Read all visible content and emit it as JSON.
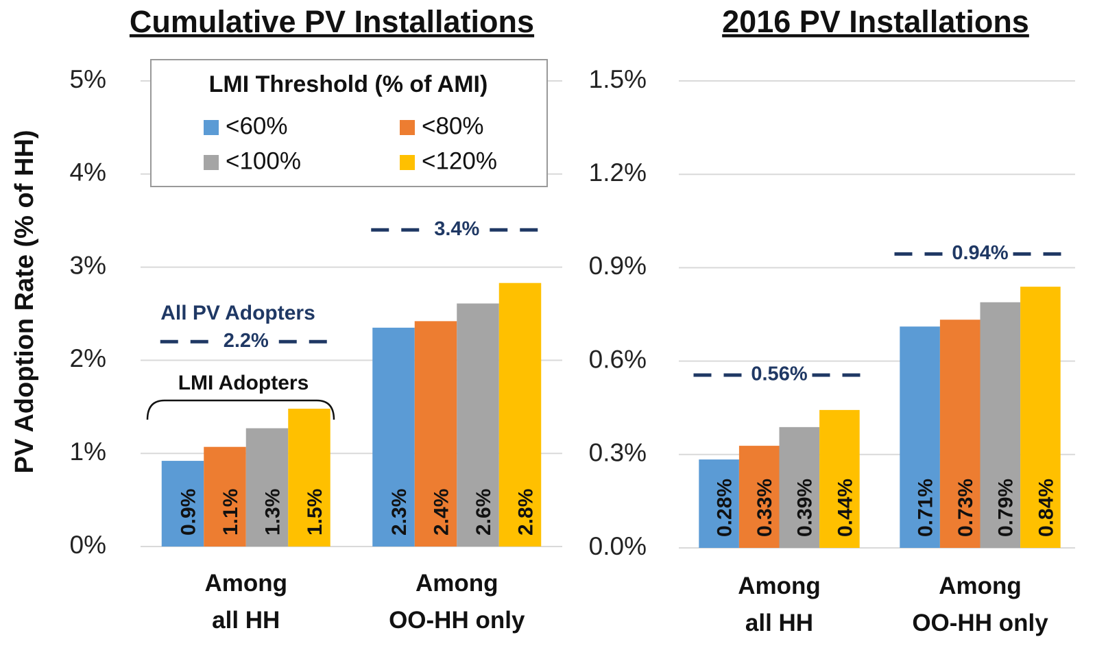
{
  "chart_data": [
    {
      "type": "bar",
      "title": "Cumulative PV Installations",
      "y_label": "PV Adoption Rate (% of HH)",
      "categories": [
        "Among\nall HH",
        "Among\nOO-HH only"
      ],
      "legend_title": "LMI Threshold  (% of AMI)",
      "legend": "upper left",
      "series": [
        {
          "name": "<60%",
          "color": "#5b9bd5",
          "values": [
            0.92,
            2.35
          ],
          "value_labels": [
            "0.9%",
            "2.3%"
          ]
        },
        {
          "name": "<80%",
          "color": "#ed7d31",
          "values": [
            1.07,
            2.42
          ],
          "value_labels": [
            "1.1%",
            "2.4%"
          ]
        },
        {
          "name": "<100%",
          "color": "#a5a5a5",
          "values": [
            1.27,
            2.61
          ],
          "value_labels": [
            "1.3%",
            "2.6%"
          ]
        },
        {
          "name": "<120%",
          "color": "#ffc000",
          "values": [
            1.48,
            2.83
          ],
          "value_labels": [
            "1.5%",
            "2.8%"
          ]
        }
      ],
      "reference_lines": [
        {
          "value": 2.2,
          "label": "2.2%"
        },
        {
          "value": 3.4,
          "label": "3.4%"
        }
      ],
      "annotations": [
        "All PV Adopters",
        "LMI Adopters"
      ],
      "ylim": [
        0,
        5
      ],
      "yticks": [
        {
          "value": 0,
          "label": "0%"
        },
        {
          "value": 1,
          "label": "1%"
        },
        {
          "value": 2,
          "label": "2%"
        },
        {
          "value": 3,
          "label": "3%"
        },
        {
          "value": 4,
          "label": "4%"
        },
        {
          "value": 5,
          "label": "5%"
        }
      ],
      "grid": true
    },
    {
      "type": "bar",
      "title": "2016 PV Installations",
      "categories": [
        "Among\nall HH",
        "Among\nOO-HH only"
      ],
      "series": [
        {
          "color": "#5b9bd5",
          "values": [
            0.284,
            0.711
          ],
          "value_labels": [
            "0.28%",
            "0.71%"
          ]
        },
        {
          "color": "#ed7d31",
          "values": [
            0.328,
            0.733
          ],
          "value_labels": [
            "0.33%",
            "0.73%"
          ]
        },
        {
          "color": "#a5a5a5",
          "values": [
            0.388,
            0.789
          ],
          "value_labels": [
            "0.39%",
            "0.79%"
          ]
        },
        {
          "color": "#ffc000",
          "values": [
            0.443,
            0.839
          ],
          "value_labels": [
            "0.44%",
            "0.84%"
          ]
        }
      ],
      "reference_lines": [
        {
          "value": 0.555,
          "label": "0.56%"
        },
        {
          "value": 0.944,
          "label": "0.94%"
        }
      ],
      "ylim": [
        0,
        1.5
      ],
      "yticks": [
        {
          "value": 0,
          "label": "0.0%"
        },
        {
          "value": 0.3,
          "label": "0.3%"
        },
        {
          "value": 0.6,
          "label": "0.6%"
        },
        {
          "value": 0.9,
          "label": "0.9%"
        },
        {
          "value": 1.2,
          "label": "1.2%"
        },
        {
          "value": 1.5,
          "label": "1.5%"
        }
      ],
      "grid": true
    }
  ]
}
